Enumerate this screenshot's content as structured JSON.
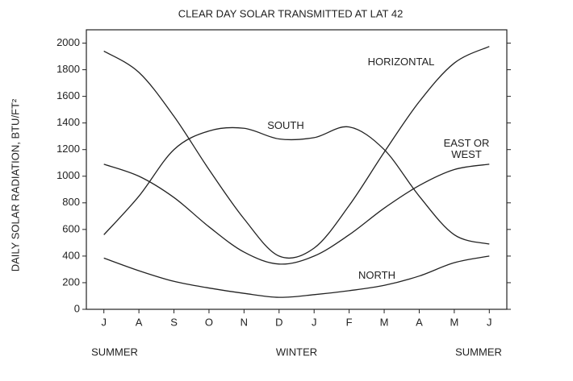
{
  "chart_data": {
    "type": "line",
    "title": "CLEAR DAY SOLAR TRANSMITTED AT LAT 42",
    "y_label": "DAILY SOLAR RADIATION, BTU/FT²",
    "categories": [
      "J",
      "A",
      "S",
      "O",
      "N",
      "D",
      "J",
      "F",
      "M",
      "A",
      "M",
      "J"
    ],
    "season_labels": [
      "SUMMER",
      "WINTER",
      "SUMMER"
    ],
    "ylim": [
      0,
      2100
    ],
    "yticks": [
      0,
      200,
      400,
      600,
      800,
      1000,
      1200,
      1400,
      1600,
      1800,
      2000
    ],
    "grid": false,
    "series": [
      {
        "name": "HORIZONTAL",
        "color": "#222222",
        "values": [
          1940,
          1780,
          1450,
          1050,
          680,
          400,
          460,
          780,
          1180,
          1560,
          1850,
          1975
        ]
      },
      {
        "name": "SOUTH",
        "color": "#222222",
        "values": [
          560,
          850,
          1200,
          1340,
          1360,
          1280,
          1290,
          1370,
          1200,
          850,
          560,
          490
        ]
      },
      {
        "name": "EAST OR WEST",
        "color": "#222222",
        "values": [
          1090,
          1000,
          840,
          620,
          430,
          340,
          400,
          560,
          760,
          930,
          1050,
          1090
        ]
      },
      {
        "name": "NORTH",
        "color": "#222222",
        "values": [
          385,
          290,
          210,
          160,
          120,
          90,
          110,
          140,
          180,
          250,
          350,
          400
        ]
      }
    ]
  }
}
